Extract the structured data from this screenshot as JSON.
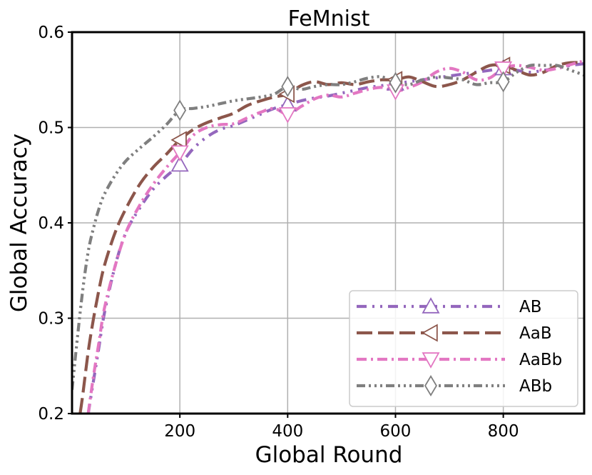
{
  "chart_data": {
    "type": "line",
    "title": "FeMnist",
    "xlabel": "Global Round",
    "ylabel": "Global Accuracy",
    "xlim": [
      0,
      950
    ],
    "ylim": [
      0.2,
      0.6
    ],
    "x_ticks": [
      200,
      400,
      600,
      800
    ],
    "y_ticks": [
      0.2,
      0.3,
      0.4,
      0.5,
      0.6
    ],
    "x_tick_labels": [
      "200",
      "400",
      "600",
      "800"
    ],
    "y_tick_labels": [
      "0.2",
      "0.3",
      "0.4",
      "0.5",
      "0.6"
    ],
    "grid": true,
    "legend_position": "lower-right",
    "series": [
      {
        "name": "AB",
        "color": "#9467bd",
        "marker": "triangle-up",
        "line_style": "dashdotdot",
        "x": [
          30,
          40,
          50,
          60,
          80,
          100,
          125,
          150,
          175,
          200,
          225,
          250,
          275,
          300,
          325,
          350,
          375,
          400,
          425,
          450,
          475,
          500,
          525,
          550,
          575,
          600,
          625,
          650,
          675,
          700,
          725,
          750,
          775,
          800,
          825,
          850,
          875,
          900,
          925,
          950
        ],
        "y": [
          0.2,
          0.235,
          0.27,
          0.305,
          0.355,
          0.39,
          0.415,
          0.435,
          0.449,
          0.461,
          0.478,
          0.49,
          0.498,
          0.502,
          0.508,
          0.514,
          0.52,
          0.524,
          0.528,
          0.531,
          0.533,
          0.536,
          0.539,
          0.542,
          0.544,
          0.546,
          0.548,
          0.55,
          0.552,
          0.554,
          0.556,
          0.558,
          0.56,
          0.562,
          0.56,
          0.558,
          0.56,
          0.562,
          0.565,
          0.567
        ]
      },
      {
        "name": "AaB",
        "color": "#8c564b",
        "marker": "triangle-left",
        "line_style": "dashed",
        "x": [
          15,
          20,
          30,
          40,
          50,
          60,
          80,
          100,
          125,
          150,
          175,
          200,
          225,
          250,
          275,
          300,
          325,
          350,
          375,
          400,
          425,
          450,
          475,
          500,
          525,
          550,
          575,
          600,
          625,
          650,
          675,
          700,
          725,
          750,
          775,
          800,
          825,
          850,
          875,
          900,
          925,
          950
        ],
        "y": [
          0.2,
          0.22,
          0.265,
          0.3,
          0.33,
          0.355,
          0.39,
          0.415,
          0.44,
          0.458,
          0.472,
          0.487,
          0.498,
          0.505,
          0.51,
          0.515,
          0.523,
          0.528,
          0.532,
          0.535,
          0.544,
          0.548,
          0.545,
          0.547,
          0.545,
          0.548,
          0.55,
          0.55,
          0.553,
          0.548,
          0.543,
          0.545,
          0.55,
          0.558,
          0.565,
          0.565,
          0.56,
          0.555,
          0.558,
          0.565,
          0.568,
          0.568
        ]
      },
      {
        "name": "AaBb",
        "color": "#e377c2",
        "marker": "triangle-down",
        "line_style": "dashdot",
        "x": [
          30,
          40,
          50,
          60,
          80,
          100,
          125,
          150,
          175,
          200,
          225,
          250,
          275,
          300,
          325,
          350,
          375,
          400,
          425,
          450,
          475,
          500,
          525,
          550,
          575,
          600,
          625,
          650,
          675,
          700,
          725,
          750,
          775,
          800,
          825,
          850,
          875,
          900,
          925,
          950
        ],
        "y": [
          0.2,
          0.24,
          0.275,
          0.31,
          0.355,
          0.39,
          0.418,
          0.44,
          0.458,
          0.474,
          0.492,
          0.5,
          0.503,
          0.504,
          0.51,
          0.516,
          0.52,
          0.514,
          0.522,
          0.53,
          0.534,
          0.532,
          0.536,
          0.54,
          0.542,
          0.538,
          0.542,
          0.548,
          0.558,
          0.562,
          0.558,
          0.55,
          0.552,
          0.562,
          0.565,
          0.563,
          0.56,
          0.562,
          0.566,
          0.57
        ]
      },
      {
        "name": "ABb",
        "color": "#7f7f7f",
        "marker": "diamond",
        "line_style": "dashdotdotdot",
        "x": [
          0,
          10,
          20,
          30,
          40,
          50,
          60,
          80,
          100,
          125,
          150,
          175,
          200,
          225,
          250,
          275,
          300,
          325,
          350,
          375,
          400,
          425,
          450,
          475,
          500,
          525,
          550,
          575,
          600,
          625,
          650,
          675,
          700,
          725,
          750,
          775,
          800,
          825,
          850,
          875,
          900,
          925,
          950
        ],
        "y": [
          0.225,
          0.28,
          0.33,
          0.37,
          0.395,
          0.415,
          0.43,
          0.45,
          0.465,
          0.478,
          0.49,
          0.503,
          0.518,
          0.52,
          0.522,
          0.525,
          0.528,
          0.53,
          0.532,
          0.535,
          0.543,
          0.54,
          0.543,
          0.545,
          0.545,
          0.548,
          0.552,
          0.553,
          0.547,
          0.545,
          0.55,
          0.553,
          0.552,
          0.55,
          0.545,
          0.547,
          0.548,
          0.558,
          0.565,
          0.565,
          0.565,
          0.56,
          0.555
        ]
      }
    ],
    "markers": [
      {
        "series": 0,
        "x": 200,
        "y": 0.461
      },
      {
        "series": 0,
        "x": 400,
        "y": 0.524
      },
      {
        "series": 0,
        "x": 600,
        "y": 0.546
      },
      {
        "series": 0,
        "x": 800,
        "y": 0.562
      },
      {
        "series": 1,
        "x": 200,
        "y": 0.487
      },
      {
        "series": 1,
        "x": 400,
        "y": 0.535
      },
      {
        "series": 1,
        "x": 600,
        "y": 0.55
      },
      {
        "series": 1,
        "x": 800,
        "y": 0.565
      },
      {
        "series": 2,
        "x": 200,
        "y": 0.474
      },
      {
        "series": 2,
        "x": 400,
        "y": 0.514
      },
      {
        "series": 2,
        "x": 600,
        "y": 0.538
      },
      {
        "series": 2,
        "x": 800,
        "y": 0.562
      },
      {
        "series": 3,
        "x": 200,
        "y": 0.518
      },
      {
        "series": 3,
        "x": 400,
        "y": 0.543
      },
      {
        "series": 3,
        "x": 600,
        "y": 0.547
      },
      {
        "series": 3,
        "x": 800,
        "y": 0.548
      }
    ]
  }
}
